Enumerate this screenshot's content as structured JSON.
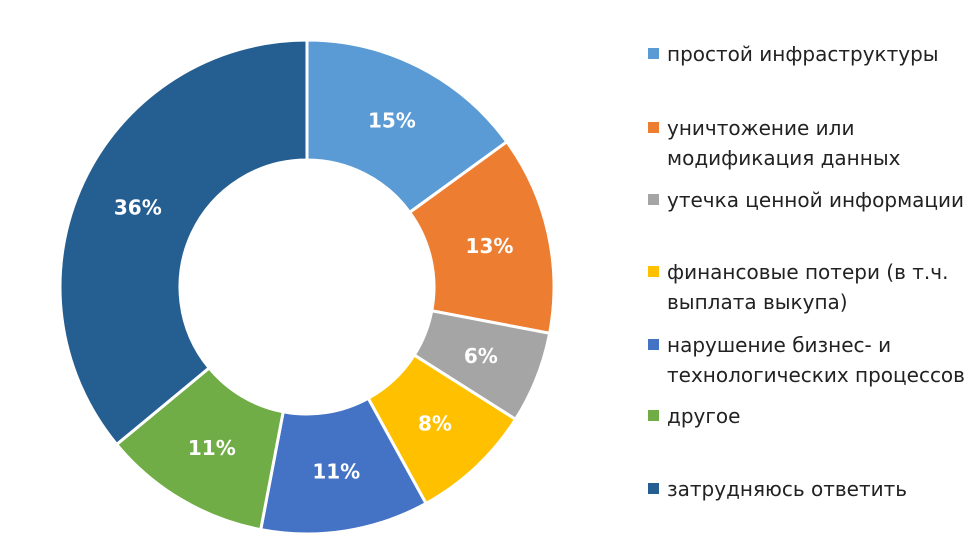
{
  "chart_data": {
    "type": "pie",
    "donut": true,
    "title": "",
    "legend_position": "right",
    "slices": [
      {
        "label": "простой инфраструктуры",
        "value": 15,
        "display": "15%",
        "color": "#5B9BD5"
      },
      {
        "label": "уничтожение или модификация данных",
        "value": 13,
        "display": "13%",
        "color": "#ED7D31"
      },
      {
        "label": "утечка ценной информации",
        "value": 6,
        "display": "6%",
        "color": "#A5A5A5"
      },
      {
        "label": "финансовые потери (в т.ч. выплата выкупа)",
        "value": 8,
        "display": "8%",
        "color": "#FFC000"
      },
      {
        "label": "нарушение бизнес- и технологических процессов",
        "value": 11,
        "display": "11%",
        "color": "#4472C4"
      },
      {
        "label": "другое",
        "value": 11,
        "display": "11%",
        "color": "#70AD47"
      },
      {
        "label": "затрудняюсь ответить",
        "value": 36,
        "display": "36%",
        "color": "#255E91"
      }
    ]
  }
}
